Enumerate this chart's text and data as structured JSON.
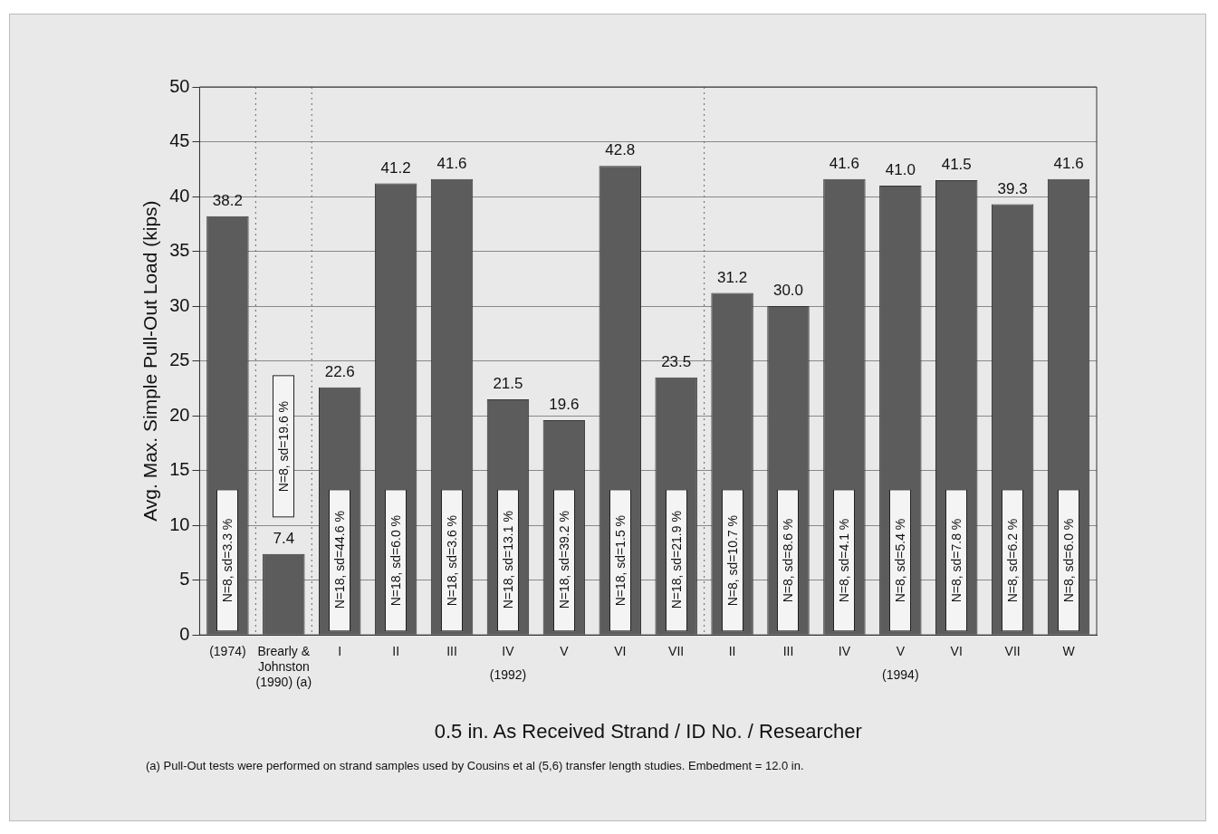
{
  "chart_data": {
    "type": "bar",
    "ylabel": "Avg. Max. Simple Pull-Out Load (kips)",
    "xlabel": "0.5 in. As Received Strand / ID No. / Researcher",
    "categories": [
      "(1974)",
      "Brearly & Johnston (1990) (a)",
      "I",
      "II",
      "III",
      "IV",
      "V",
      "VI",
      "VII",
      "II",
      "III",
      "IV",
      "V",
      "VI",
      "VII",
      "W"
    ],
    "values": [
      38.2,
      7.4,
      22.6,
      41.2,
      41.6,
      21.5,
      19.6,
      42.8,
      23.5,
      31.2,
      30.0,
      41.6,
      41.0,
      41.5,
      39.3,
      41.6
    ],
    "value_labels": [
      "38.2",
      "7.4",
      "22.6",
      "41.2",
      "41.6",
      "21.5",
      "19.6",
      "42.8",
      "23.5",
      "31.2",
      "30.0",
      "41.6",
      "41.0",
      "41.5",
      "39.3",
      "41.6"
    ],
    "color": "#5c5c5c",
    "ylim": [
      0,
      50
    ],
    "yticks": [
      0,
      5,
      10,
      15,
      20,
      25,
      30,
      35,
      40,
      45,
      50
    ],
    "grid": "y",
    "legend": false,
    "annotations": [
      "N=8, sd=3.3 %",
      "N=8, sd=19.6 %",
      "N=18, sd=44.6 %",
      "N=18, sd=6.0 %",
      "N=18, sd=3.6 %",
      "N=18, sd=13.1 %",
      "N=18, sd=39.2 %",
      "N=18, sd=1.5 %",
      "N=18, sd=21.9 %",
      "N=8, sd=10.7 %",
      "N=8, sd=8.6 %",
      "N=8, sd=4.1 %",
      "N=8, sd=5.4 %",
      "N=8, sd=7.8 %",
      "N=8, sd=6.2 %",
      "N=8, sd=6.0 %",
      "(1992)",
      "(1994)",
      "(a)  Pull-Out tests were performed on strand samples used by Cousins et al (5,6) transfer length studies.  Embedment = 12.0 in."
    ]
  }
}
